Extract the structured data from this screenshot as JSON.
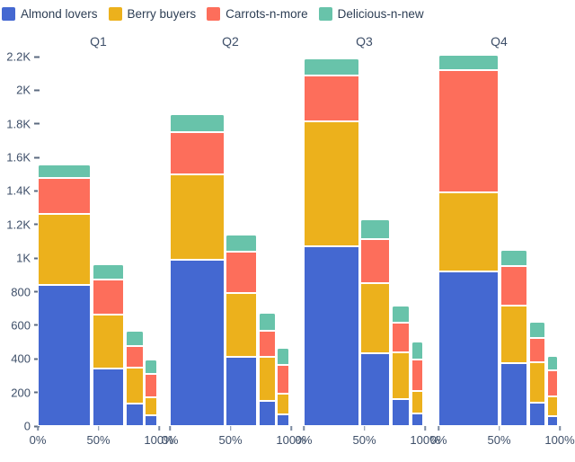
{
  "chart_data": {
    "type": "bar",
    "variant": "marimekko-grouped-stacked",
    "title": "",
    "xlabel": "",
    "ylabel": "",
    "ylim": [
      0,
      2200
    ],
    "grid": false,
    "legend_position": "top-left",
    "yticks": [
      {
        "value": 0,
        "label": "0"
      },
      {
        "value": 200,
        "label": "200"
      },
      {
        "value": 400,
        "label": "400"
      },
      {
        "value": 600,
        "label": "600"
      },
      {
        "value": 800,
        "label": "800"
      },
      {
        "value": 1000,
        "label": "1K"
      },
      {
        "value": 1200,
        "label": "1.2K"
      },
      {
        "value": 1400,
        "label": "1.4K"
      },
      {
        "value": 1600,
        "label": "1.6K"
      },
      {
        "value": 1800,
        "label": "1.8K"
      },
      {
        "value": 2000,
        "label": "2K"
      },
      {
        "value": 2200,
        "label": "2.2K"
      }
    ],
    "xticks_pct": [
      {
        "pct": 0,
        "label": "0%"
      },
      {
        "pct": 50,
        "label": "50%"
      },
      {
        "pct": 100,
        "label": "100%"
      }
    ],
    "series": [
      {
        "name": "Almond lovers",
        "color": "#4468d1"
      },
      {
        "name": "Berry buyers",
        "color": "#ecb11c"
      },
      {
        "name": "Carrots-n-more",
        "color": "#fd6e5b"
      },
      {
        "name": "Delicious-n-new",
        "color": "#68c3aa"
      }
    ],
    "groups": [
      {
        "label": "Q1",
        "bar_width_pct": [
          45,
          27.5,
          16,
          11.5
        ],
        "bars": [
          {
            "values": [
              840,
              425,
              210,
              85
            ]
          },
          {
            "values": [
              345,
              320,
              205,
              95
            ]
          },
          {
            "values": [
              135,
              215,
              125,
              95
            ]
          },
          {
            "values": [
              65,
              105,
              140,
              85
            ]
          }
        ]
      },
      {
        "label": "Q2",
        "bar_width_pct": [
          46,
          27,
          15.5,
          11.5
        ],
        "bars": [
          {
            "values": [
              990,
              510,
              250,
              105
            ]
          },
          {
            "values": [
              410,
              380,
              250,
              100
            ]
          },
          {
            "values": [
              150,
              260,
              160,
              105
            ]
          },
          {
            "values": [
              70,
              125,
              170,
              100
            ]
          }
        ]
      },
      {
        "label": "Q3",
        "bar_width_pct": [
          46,
          25.5,
          16,
          11
        ],
        "bars": [
          {
            "values": [
              1070,
              745,
              275,
              100
            ]
          },
          {
            "values": [
              435,
              415,
              265,
              115
            ]
          },
          {
            "values": [
              160,
              280,
              175,
              105
            ]
          },
          {
            "values": [
              75,
              135,
              185,
              110
            ]
          }
        ]
      },
      {
        "label": "Q4",
        "bar_width_pct": [
          50,
          23.5,
          14.5,
          10.5
        ],
        "bars": [
          {
            "values": [
              920,
              470,
              730,
              90
            ]
          },
          {
            "values": [
              375,
              345,
              235,
              95
            ]
          },
          {
            "values": [
              140,
              240,
              145,
              95
            ]
          },
          {
            "values": [
              60,
              115,
              155,
              90
            ]
          }
        ]
      }
    ]
  }
}
